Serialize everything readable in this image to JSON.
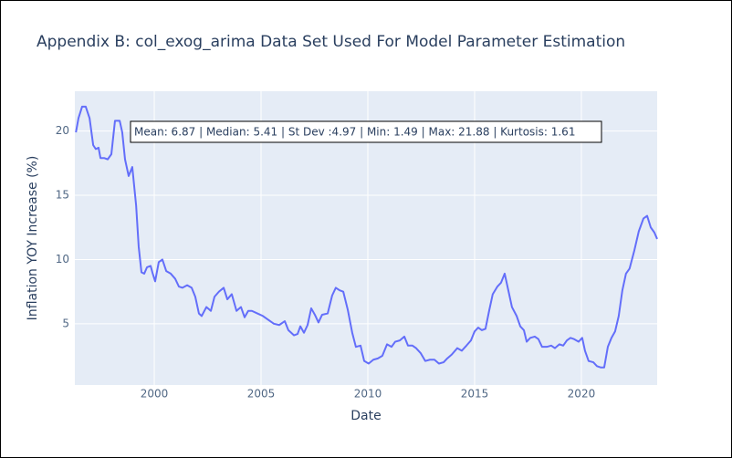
{
  "chart_data": {
    "type": "line",
    "title": "Appendix B: col_exog_arima Data Set Used For Model Parameter Estimation",
    "x_label": "Date",
    "y_label": "Inflation YOY Increase (%)",
    "annotation": "Mean: 6.87 | Median: 5.41 | St Dev :4.97 | Min: 1.49 | Max: 21.88 | Kurtosis: 1.61",
    "color": "#636efa",
    "grid": true,
    "xlim": [
      1996.28,
      2023.55
    ],
    "xticks": [
      2000,
      2005,
      2010,
      2015,
      2020
    ],
    "ylim": [
      0.23,
      23.1
    ],
    "yticks": [
      5,
      10,
      15,
      20
    ],
    "x": [
      1996.33,
      1996.45,
      1996.62,
      1996.79,
      1996.97,
      1997.14,
      1997.26,
      1997.39,
      1997.48,
      1997.65,
      1997.82,
      1997.99,
      1998.16,
      1998.38,
      1998.5,
      1998.63,
      1998.8,
      1998.97,
      1999.15,
      1999.27,
      1999.4,
      1999.53,
      1999.66,
      1999.83,
      1999.91,
      2000.04,
      2000.21,
      2000.38,
      2000.56,
      2000.77,
      2000.98,
      2001.15,
      2001.32,
      2001.54,
      2001.75,
      2001.92,
      2002.09,
      2002.22,
      2002.44,
      2002.65,
      2002.82,
      2003.03,
      2003.25,
      2003.42,
      2003.63,
      2003.85,
      2004.06,
      2004.23,
      2004.4,
      2004.57,
      2004.83,
      2005.09,
      2005.34,
      2005.6,
      2005.85,
      2006.11,
      2006.28,
      2006.54,
      2006.71,
      2006.84,
      2007.01,
      2007.18,
      2007.35,
      2007.52,
      2007.69,
      2007.86,
      2008.12,
      2008.33,
      2008.5,
      2008.68,
      2008.85,
      2009.06,
      2009.27,
      2009.44,
      2009.66,
      2009.83,
      2010.04,
      2010.26,
      2010.47,
      2010.68,
      2010.9,
      2011.11,
      2011.28,
      2011.5,
      2011.71,
      2011.88,
      2012.09,
      2012.26,
      2012.48,
      2012.69,
      2012.91,
      2013.12,
      2013.33,
      2013.55,
      2013.72,
      2013.93,
      2014.19,
      2014.4,
      2014.62,
      2014.83,
      2015.0,
      2015.17,
      2015.34,
      2015.51,
      2015.68,
      2015.85,
      2016.07,
      2016.24,
      2016.41,
      2016.58,
      2016.75,
      2016.97,
      2017.14,
      2017.31,
      2017.44,
      2017.61,
      2017.82,
      2017.99,
      2018.16,
      2018.38,
      2018.59,
      2018.76,
      2018.97,
      2019.15,
      2019.32,
      2019.49,
      2019.66,
      2019.87,
      2020.04,
      2020.17,
      2020.34,
      2020.56,
      2020.73,
      2020.9,
      2021.07,
      2021.24,
      2021.41,
      2021.58,
      2021.75,
      2021.92,
      2022.09,
      2022.26,
      2022.48,
      2022.69,
      2022.91,
      2023.08,
      2023.25,
      2023.42,
      2023.55
    ],
    "values": [
      19.9,
      21.0,
      21.9,
      21.9,
      21.0,
      18.9,
      18.6,
      18.7,
      17.9,
      17.9,
      17.8,
      18.2,
      20.8,
      20.8,
      19.9,
      17.8,
      16.5,
      17.2,
      14.2,
      11.0,
      9.0,
      8.9,
      9.4,
      9.5,
      9.0,
      8.3,
      9.8,
      10.0,
      9.1,
      8.9,
      8.5,
      7.9,
      7.8,
      8.0,
      7.8,
      7.1,
      5.8,
      5.6,
      6.3,
      6.0,
      7.1,
      7.5,
      7.8,
      6.9,
      7.3,
      6.0,
      6.3,
      5.5,
      6.0,
      6.0,
      5.8,
      5.6,
      5.3,
      5.0,
      4.9,
      5.2,
      4.5,
      4.1,
      4.2,
      4.8,
      4.3,
      4.9,
      6.2,
      5.7,
      5.1,
      5.7,
      5.8,
      7.2,
      7.8,
      7.6,
      7.5,
      6.1,
      4.3,
      3.2,
      3.3,
      2.1,
      1.9,
      2.2,
      2.3,
      2.5,
      3.4,
      3.2,
      3.6,
      3.7,
      4.0,
      3.3,
      3.3,
      3.1,
      2.7,
      2.1,
      2.2,
      2.2,
      1.9,
      2.0,
      2.3,
      2.6,
      3.1,
      2.9,
      3.3,
      3.7,
      4.4,
      4.7,
      4.5,
      4.6,
      6.0,
      7.3,
      7.9,
      8.2,
      8.9,
      7.6,
      6.3,
      5.6,
      4.8,
      4.5,
      3.6,
      3.9,
      4.0,
      3.8,
      3.2,
      3.2,
      3.3,
      3.1,
      3.4,
      3.3,
      3.7,
      3.9,
      3.8,
      3.6,
      3.9,
      2.9,
      2.1,
      2.0,
      1.7,
      1.6,
      1.6,
      3.2,
      3.9,
      4.4,
      5.6,
      7.6,
      8.9,
      9.3,
      10.7,
      12.2,
      13.2,
      13.4,
      12.5,
      12.1,
      11.6
    ]
  }
}
